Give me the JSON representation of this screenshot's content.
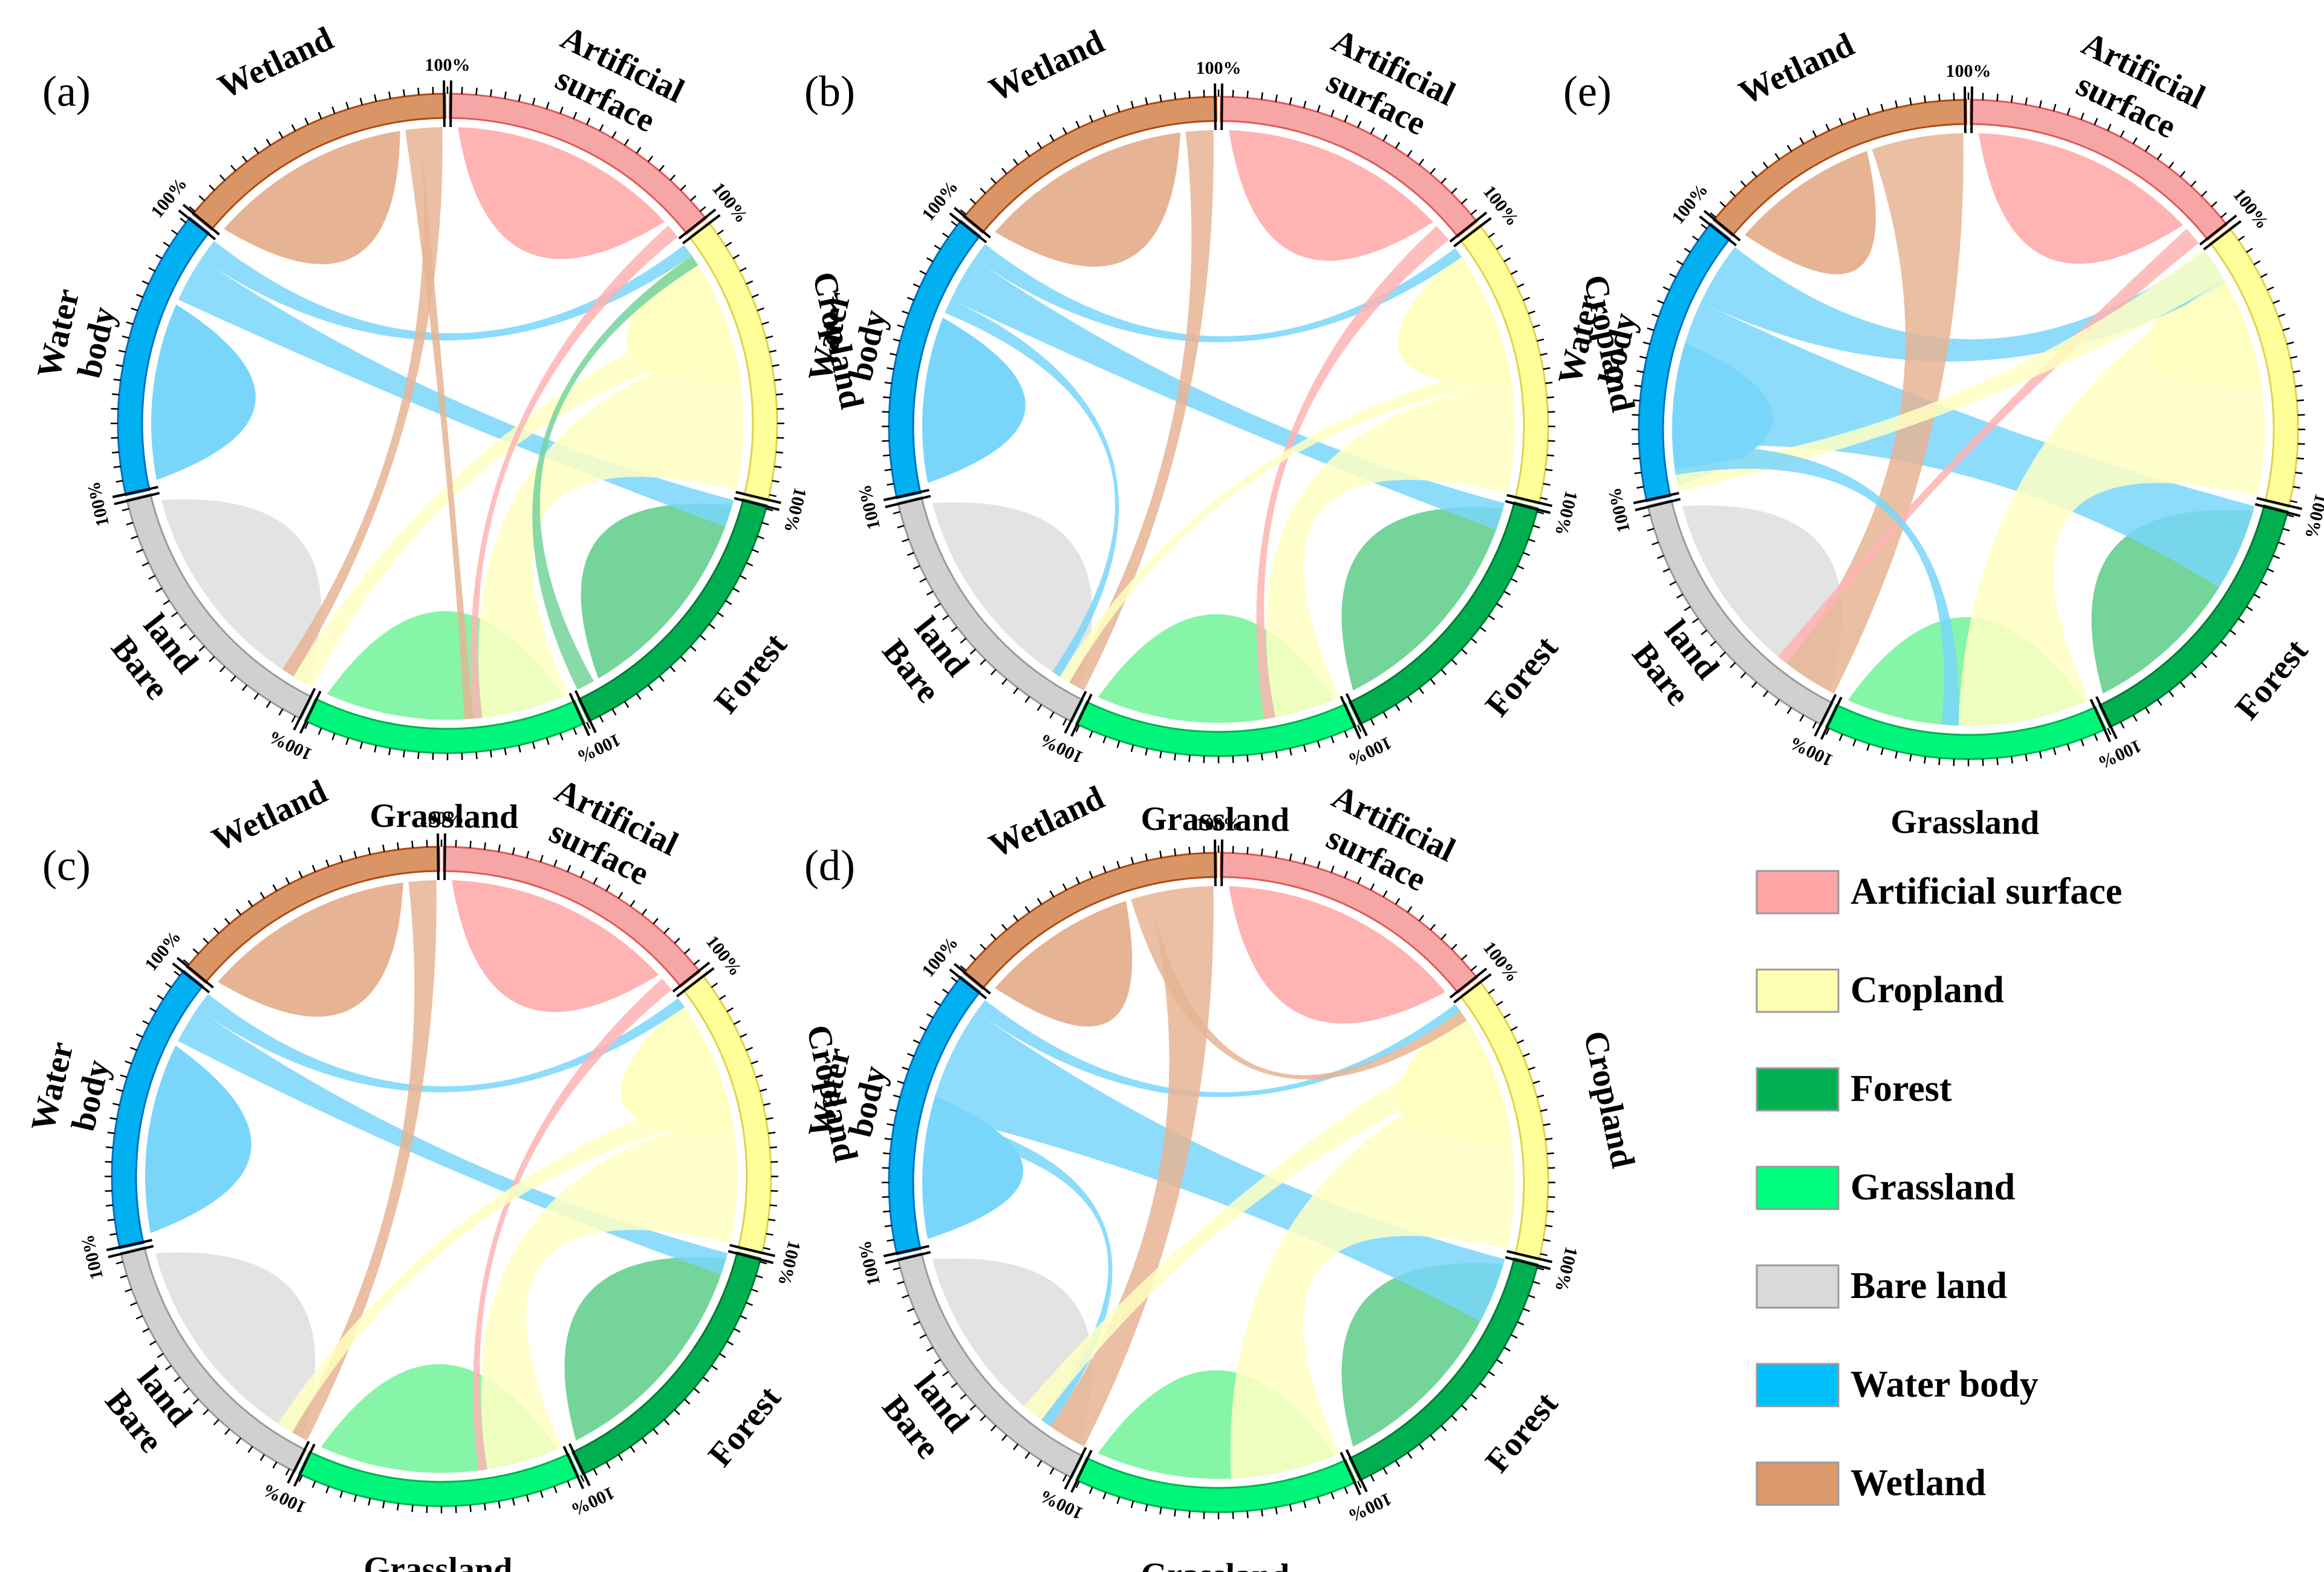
{
  "categories": [
    {
      "key": "artificial",
      "name": "Artificial surface",
      "label_lines": [
        "Artificial",
        "surface"
      ],
      "color": "#FFB3B3",
      "ring": "#F7A6A6",
      "ring_line": "#E05A5A"
    },
    {
      "key": "cropland",
      "name": "Cropland",
      "label_lines": [
        "Cropland"
      ],
      "color": "#FFFFC2",
      "ring": "#FFFF99",
      "ring_line": "#E0D24A"
    },
    {
      "key": "forest",
      "name": "Forest",
      "label_lines": [
        "Forest"
      ],
      "color": "#74D49A",
      "ring": "#00B050",
      "ring_line": "#007A35"
    },
    {
      "key": "grassland",
      "name": "Grassland",
      "label_lines": [
        "Grassland"
      ],
      "color": "#86F5A8",
      "ring": "#00F57A",
      "ring_line": "#00B050"
    },
    {
      "key": "bareland",
      "name": "Bare land",
      "label_lines": [
        "Bare",
        "land"
      ],
      "color": "#E3E3E3",
      "ring": "#D0D0D0",
      "ring_line": "#9A9A9A"
    },
    {
      "key": "water",
      "name": "Water body",
      "label_lines": [
        "Water",
        "body"
      ],
      "color": "#79D6FA",
      "ring": "#00B0F0",
      "ring_line": "#0070C0"
    },
    {
      "key": "wetland",
      "name": "Wetland",
      "label_lines": [
        "Wetland"
      ],
      "color": "#E6B494",
      "ring": "#D99566",
      "ring_line": "#B04A10"
    }
  ],
  "percent_label": "100%",
  "panels": [
    {
      "id": "a",
      "label": "(a)",
      "flows": [
        [
          "water",
          "cropland",
          0.012
        ],
        [
          "water",
          "forest",
          0.025
        ],
        [
          "cropland",
          "grassland",
          0.08
        ],
        [
          "cropland",
          "bareland",
          0.02
        ],
        [
          "wetland",
          "bareland",
          0.012
        ],
        [
          "artificial",
          "grassland",
          0.008
        ],
        [
          "forest",
          "cropland",
          0.01
        ],
        [
          "wetland",
          "grassland",
          0.008
        ]
      ]
    },
    {
      "id": "b",
      "label": "(b)",
      "flows": [
        [
          "water",
          "cropland",
          0.01
        ],
        [
          "water",
          "forest",
          0.025
        ],
        [
          "cropland",
          "grassland",
          0.06
        ],
        [
          "wetland",
          "bareland",
          0.015
        ],
        [
          "artificial",
          "grassland",
          0.01
        ],
        [
          "cropland",
          "bareland",
          0.01
        ],
        [
          "water",
          "bareland",
          0.008
        ]
      ]
    },
    {
      "id": "e",
      "label": "(e)",
      "flows": [
        [
          "water",
          "cropland",
          0.035
        ],
        [
          "water",
          "forest",
          0.08
        ],
        [
          "cropland",
          "grassland",
          0.12
        ],
        [
          "wetland",
          "bareland",
          0.05
        ],
        [
          "artificial",
          "bareland",
          0.01
        ],
        [
          "cropland",
          "water",
          0.02
        ],
        [
          "water",
          "grassland",
          0.015
        ]
      ]
    },
    {
      "id": "c",
      "label": "(c)",
      "flows": [
        [
          "water",
          "cropland",
          0.01
        ],
        [
          "water",
          "forest",
          0.02
        ],
        [
          "cropland",
          "grassland",
          0.07
        ],
        [
          "wetland",
          "bareland",
          0.015
        ],
        [
          "artificial",
          "grassland",
          0.008
        ],
        [
          "cropland",
          "bareland",
          0.015
        ]
      ]
    },
    {
      "id": "d",
      "label": "(d)",
      "flows": [
        [
          "water",
          "cropland",
          0.008
        ],
        [
          "water",
          "forest",
          0.06
        ],
        [
          "cropland",
          "grassland",
          0.1
        ],
        [
          "wetland",
          "bareland",
          0.035
        ],
        [
          "wetland",
          "cropland",
          0.01
        ],
        [
          "water",
          "bareland",
          0.01
        ],
        [
          "cropland",
          "bareland",
          0.02
        ]
      ]
    }
  ],
  "legend": {
    "items": [
      {
        "label": "Artificial surface",
        "color": "#FFA6A6"
      },
      {
        "label": "Cropland",
        "color": "#FFFFB3"
      },
      {
        "label": "Forest",
        "color": "#00B050"
      },
      {
        "label": "Grassland",
        "color": "#00FF7F"
      },
      {
        "label": "Bare land",
        "color": "#D9D9D9"
      },
      {
        "label": "Water body",
        "color": "#00BFFF"
      },
      {
        "label": "Wetland",
        "color": "#DC9A6C"
      }
    ]
  }
}
